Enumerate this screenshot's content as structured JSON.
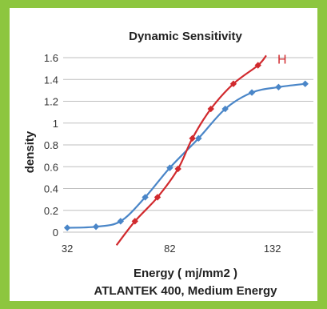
{
  "chart_data": {
    "type": "line",
    "title": "Dynamic Sensitivity",
    "xlabel": "Energy ( mj/mm2 )",
    "subtitle": "ATLANTEK 400, Medium Energy",
    "ylabel": "density",
    "xlim": [
      30,
      152
    ],
    "ylim": [
      0,
      1.6
    ],
    "x_ticks": [
      "32",
      "82",
      "132"
    ],
    "x_tick_values": [
      32,
      82,
      132
    ],
    "y_ticks": [
      "0",
      "0.2",
      "0.4",
      "0.6",
      "0.8",
      "1",
      "1.2",
      "1.4",
      "1.6"
    ],
    "y_tick_values": [
      0,
      0.2,
      0.4,
      0.6,
      0.8,
      1.0,
      1.2,
      1.4,
      1.6
    ],
    "grid": true,
    "series": [
      {
        "color": "#4a86c8",
        "points": [
          {
            "x": 32,
            "y": 0.04
          },
          {
            "x": 46,
            "y": 0.05
          },
          {
            "x": 58,
            "y": 0.1
          },
          {
            "x": 70,
            "y": 0.32
          },
          {
            "x": 82,
            "y": 0.59
          },
          {
            "x": 96,
            "y": 0.86
          },
          {
            "x": 109,
            "y": 1.13
          },
          {
            "x": 122,
            "y": 1.28
          },
          {
            "x": 135,
            "y": 1.33
          },
          {
            "x": 148,
            "y": 1.36
          }
        ]
      },
      {
        "name": "H",
        "color": "#d12a2e",
        "points": [
          {
            "x": 65,
            "y": 0.1
          },
          {
            "x": 76,
            "y": 0.32
          },
          {
            "x": 86,
            "y": 0.58
          },
          {
            "x": 93,
            "y": 0.86
          },
          {
            "x": 102,
            "y": 1.13
          },
          {
            "x": 113,
            "y": 1.36
          },
          {
            "x": 125,
            "y": 1.53
          }
        ]
      }
    ]
  }
}
